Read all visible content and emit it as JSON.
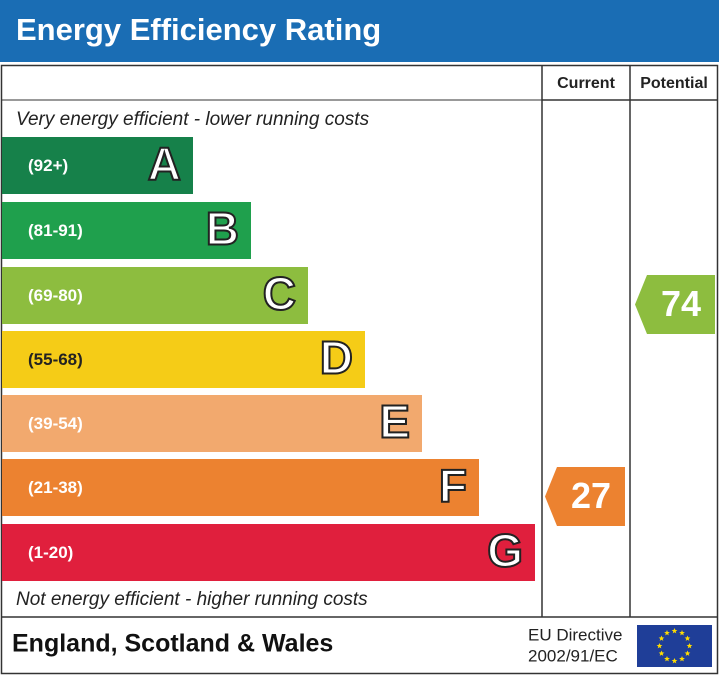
{
  "chart_data": {
    "type": "epc",
    "title": "Energy Efficiency Rating",
    "columns": [
      "Current",
      "Potential"
    ],
    "top_note": "Very energy efficient - lower running costs",
    "bottom_note": "Not energy efficient - higher running costs",
    "bands": [
      {
        "range": "(92+)",
        "letter": "A",
        "color": "#16814a"
      },
      {
        "range": "(81-91)",
        "letter": "B",
        "color": "#1fa04d"
      },
      {
        "range": "(69-80)",
        "letter": "C",
        "color": "#8dbd3f"
      },
      {
        "range": "(55-68)",
        "letter": "D",
        "color": "#f5cc17"
      },
      {
        "range": "(39-54)",
        "letter": "E",
        "color": "#f2a96e"
      },
      {
        "range": "(21-38)",
        "letter": "F",
        "color": "#ec8230"
      },
      {
        "range": "(1-20)",
        "letter": "G",
        "color": "#e01f3d"
      }
    ],
    "current": 27,
    "potential": 74,
    "footer": {
      "region": "England, Scotland & Wales",
      "directive": [
        "EU Directive",
        "2002/91/EC"
      ]
    }
  }
}
